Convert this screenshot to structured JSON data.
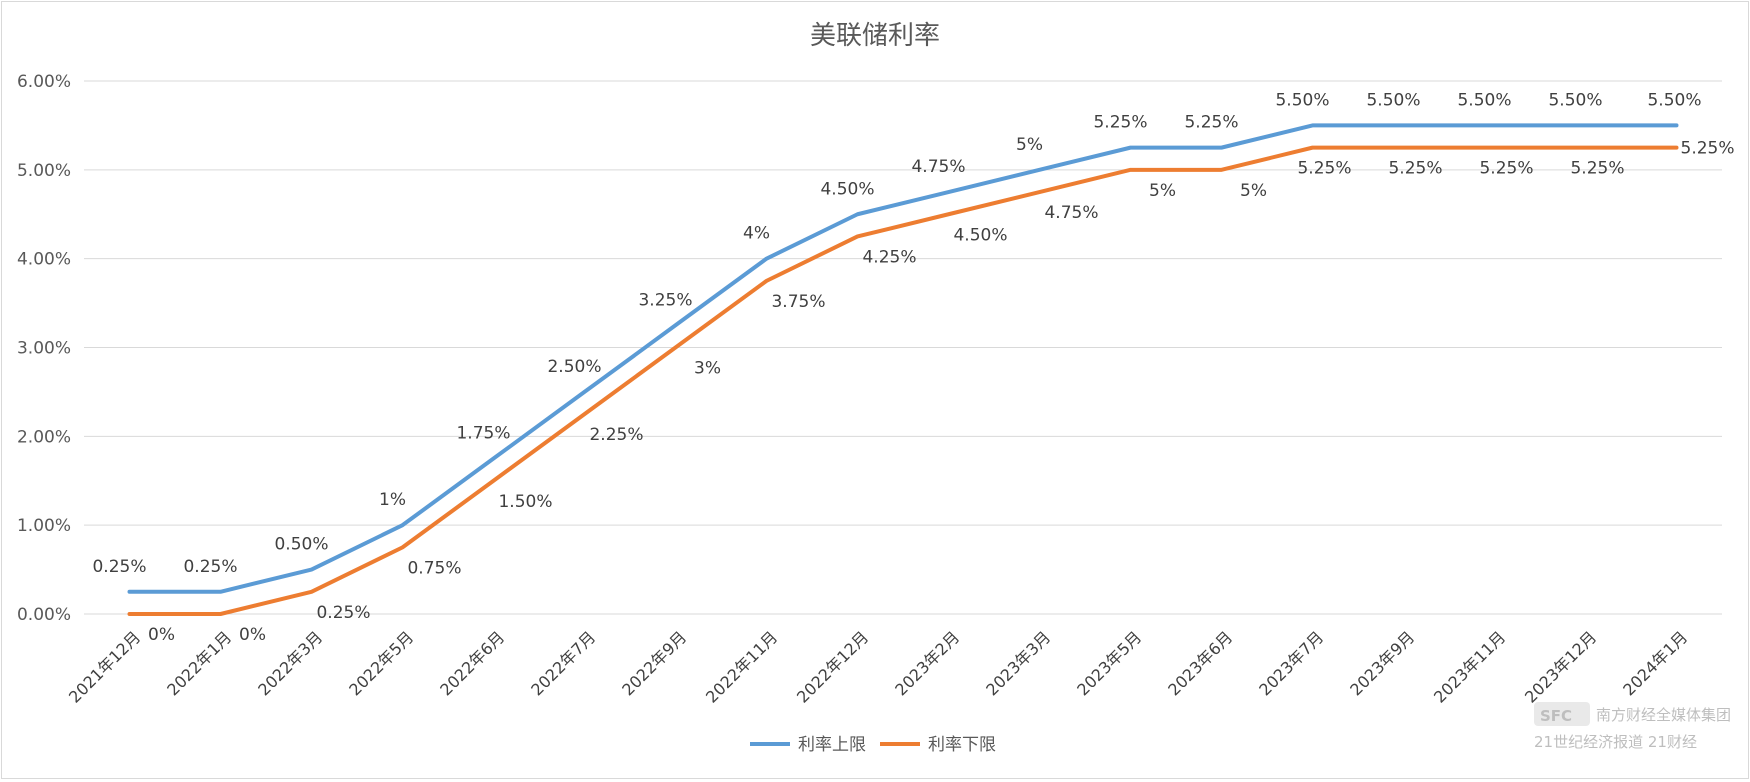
{
  "chart_data": {
    "type": "line",
    "title": "美联储利率",
    "categories": [
      "2021年12月",
      "2022年1月",
      "2022年3月",
      "2022年5月",
      "2022年6月",
      "2022年7月",
      "2022年9月",
      "2022年11月",
      "2022年12月",
      "2023年2月",
      "2023年3月",
      "2023年5月",
      "2023年6月",
      "2023年7月",
      "2023年9月",
      "2023年11月",
      "2023年12月",
      "2024年1月"
    ],
    "series": [
      {
        "name": "利率上限",
        "color": "#5b9bd5",
        "values": [
          0.25,
          0.25,
          0.5,
          1,
          1.75,
          2.5,
          3.25,
          4,
          4.5,
          4.75,
          5,
          5.25,
          5.25,
          5.5,
          5.5,
          5.5,
          5.5,
          5.5
        ],
        "labels": [
          "0.25%",
          "0.25%",
          "0.50%",
          "1%",
          "1.75%",
          "2.50%",
          "3.25%",
          "4%",
          "4.50%",
          "4.75%",
          "5%",
          "5.25%",
          "5.25%",
          "5.50%",
          "5.50%",
          "5.50%",
          "5.50%",
          "5.50%"
        ]
      },
      {
        "name": "利率下限",
        "color": "#ed7d31",
        "values": [
          0,
          0,
          0.25,
          0.75,
          1.5,
          2.25,
          3,
          3.75,
          4.25,
          4.5,
          4.75,
          5,
          5,
          5.25,
          5.25,
          5.25,
          5.25,
          5.25
        ],
        "labels": [
          "0%",
          "0%",
          "0.25%",
          "0.75%",
          "1.50%",
          "2.25%",
          "3%",
          "3.75%",
          "4.25%",
          "4.50%",
          "4.75%",
          "5%",
          "5%",
          "5.25%",
          "5.25%",
          "5.25%",
          "5.25%",
          "5.25%"
        ]
      }
    ],
    "yticks": [
      "0.00%",
      "1.00%",
      "2.00%",
      "3.00%",
      "4.00%",
      "5.00%",
      "6.00%"
    ],
    "ylim": [
      0,
      6
    ],
    "grid": true,
    "legend": "bottom-center"
  },
  "watermark": {
    "logo": "SFC",
    "line1": "南方财经全媒体集团",
    "line2": "21世纪经济报道 21财经"
  }
}
